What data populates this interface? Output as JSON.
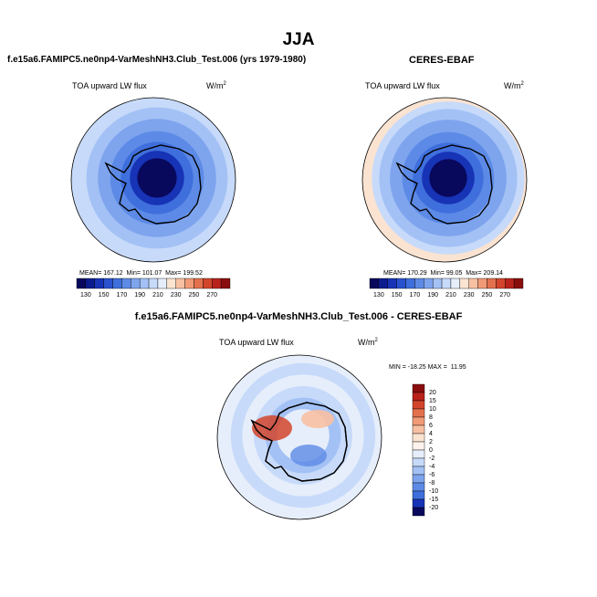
{
  "main_title": "JJA",
  "left_panel": {
    "title": "f.e15a6.FAMIPC5.ne0np4-VarMeshNH3.Club_Test.006 (yrs 1979-1980)",
    "variable": "TOA upward LW flux",
    "units": "W/m",
    "units_exp": "2",
    "stats": "MEAN= 167.12  Min= 101.07  Max= 199.52"
  },
  "right_panel": {
    "title": "CERES-EBAF",
    "variable": "TOA upward LW flux",
    "units": "W/m",
    "units_exp": "2",
    "stats": "MEAN= 170.29  Min= 99.05  Max= 209.14"
  },
  "diff_panel": {
    "title": "f.e15a6.FAMIPC5.ne0np4-VarMeshNH3.Club_Test.006 - CERES-EBAF",
    "variable": "TOA upward LW flux",
    "units": "W/m",
    "units_exp": "2",
    "minmax": "MIN = -18.25 MAX =  11.95"
  },
  "chart_data": [
    {
      "type": "heatmap",
      "projection": "south-polar-stereographic",
      "title": "f.e15a6.FAMIPC5.ne0np4-VarMeshNH3.Club_Test.006 (yrs 1979-1980)",
      "variable": "TOA upward LW flux",
      "units": "W/m2",
      "mean": 167.12,
      "min": 101.07,
      "max": 199.52,
      "colorbar_levels": [
        130,
        140,
        150,
        160,
        170,
        180,
        190,
        200,
        210,
        220,
        230,
        240,
        250,
        260,
        270
      ],
      "colorbar_labels": [
        "130",
        "150",
        "170",
        "190",
        "210",
        "230",
        "250",
        "270"
      ],
      "colorbar_colors": [
        "#08085c",
        "#0b1c8e",
        "#1733b6",
        "#2a52cf",
        "#3f6fdc",
        "#5c8ae6",
        "#7ea4ee",
        "#a3c1f5",
        "#c7dafa",
        "#e6eefb",
        "#fbe3d1",
        "#f8c0a2",
        "#f19a76",
        "#e4714e",
        "#d2452b",
        "#b8221b",
        "#8a0d0d"
      ],
      "rings_tenths": [
        {
          "r": 10,
          "color": "#c7dafa"
        },
        {
          "r": 8.6,
          "color": "#a3c1f5"
        },
        {
          "r": 7.2,
          "color": "#7ea4ee"
        },
        {
          "r": 5.7,
          "color": "#5c8ae6"
        },
        {
          "r": 4.4,
          "color": "#3f6fdc"
        },
        {
          "r": 3.3,
          "color": "#1733b6"
        },
        {
          "r": 2.4,
          "color": "#08085c"
        }
      ]
    },
    {
      "type": "heatmap",
      "projection": "south-polar-stereographic",
      "title": "CERES-EBAF",
      "variable": "TOA upward LW flux",
      "units": "W/m2",
      "mean": 170.29,
      "min": 99.05,
      "max": 209.14,
      "colorbar_levels": [
        130,
        140,
        150,
        160,
        170,
        180,
        190,
        200,
        210,
        220,
        230,
        240,
        250,
        260,
        270
      ],
      "colorbar_labels": [
        "130",
        "150",
        "170",
        "190",
        "210",
        "230",
        "250",
        "270"
      ],
      "colorbar_colors": [
        "#08085c",
        "#0b1c8e",
        "#1733b6",
        "#2a52cf",
        "#3f6fdc",
        "#5c8ae6",
        "#7ea4ee",
        "#a3c1f5",
        "#c7dafa",
        "#e6eefb",
        "#fbe3d1",
        "#f8c0a2",
        "#f19a76",
        "#e4714e",
        "#d2452b",
        "#b8221b",
        "#8a0d0d"
      ],
      "rings_tenths": [
        {
          "r": 10,
          "color": "#fbe3d1"
        },
        {
          "r": 9.3,
          "color": "#c7dafa"
        },
        {
          "r": 8.4,
          "color": "#a3c1f5"
        },
        {
          "r": 7.1,
          "color": "#7ea4ee"
        },
        {
          "r": 5.6,
          "color": "#5c8ae6"
        },
        {
          "r": 4.3,
          "color": "#3f6fdc"
        },
        {
          "r": 3.2,
          "color": "#1733b6"
        },
        {
          "r": 2.3,
          "color": "#08085c"
        }
      ]
    },
    {
      "type": "heatmap",
      "projection": "south-polar-stereographic",
      "title": "f.e15a6.FAMIPC5.ne0np4-VarMeshNH3.Club_Test.006 - CERES-EBAF",
      "variable": "TOA upward LW flux",
      "units": "W/m2",
      "min": -18.25,
      "max": 11.95,
      "colorbar_levels": [
        20,
        15,
        10,
        8,
        6,
        4,
        2,
        0,
        -2,
        -4,
        -6,
        -8,
        -10,
        -15,
        -20
      ],
      "colorbar_labels": [
        "20",
        "15",
        "10",
        "8",
        "6",
        "4",
        "2",
        "0",
        "-2",
        "-4",
        "-6",
        "-8",
        "-10",
        "-15",
        "-20"
      ],
      "colorbar_colors": [
        "#8a0d0d",
        "#b8221b",
        "#d2452b",
        "#e4714e",
        "#f19a76",
        "#f8c0a2",
        "#fbe3d1",
        "#fdf3ec",
        "#e6eefb",
        "#c7dafa",
        "#a3c1f5",
        "#7ea4ee",
        "#5c8ae6",
        "#3f6fdc",
        "#1733b6",
        "#08085c"
      ],
      "rings_tenths": [
        {
          "r": 10,
          "color": "#e6eefb"
        },
        {
          "r": 8.8,
          "color": "#c7dafa"
        },
        {
          "r": 7.4,
          "color": "#e6eefb"
        },
        {
          "r": 6.0,
          "color": "#c7dafa"
        },
        {
          "r": 4.6,
          "color": "#a3c1f5"
        },
        {
          "r": 3.2,
          "color": "#e6eefb"
        }
      ]
    }
  ]
}
